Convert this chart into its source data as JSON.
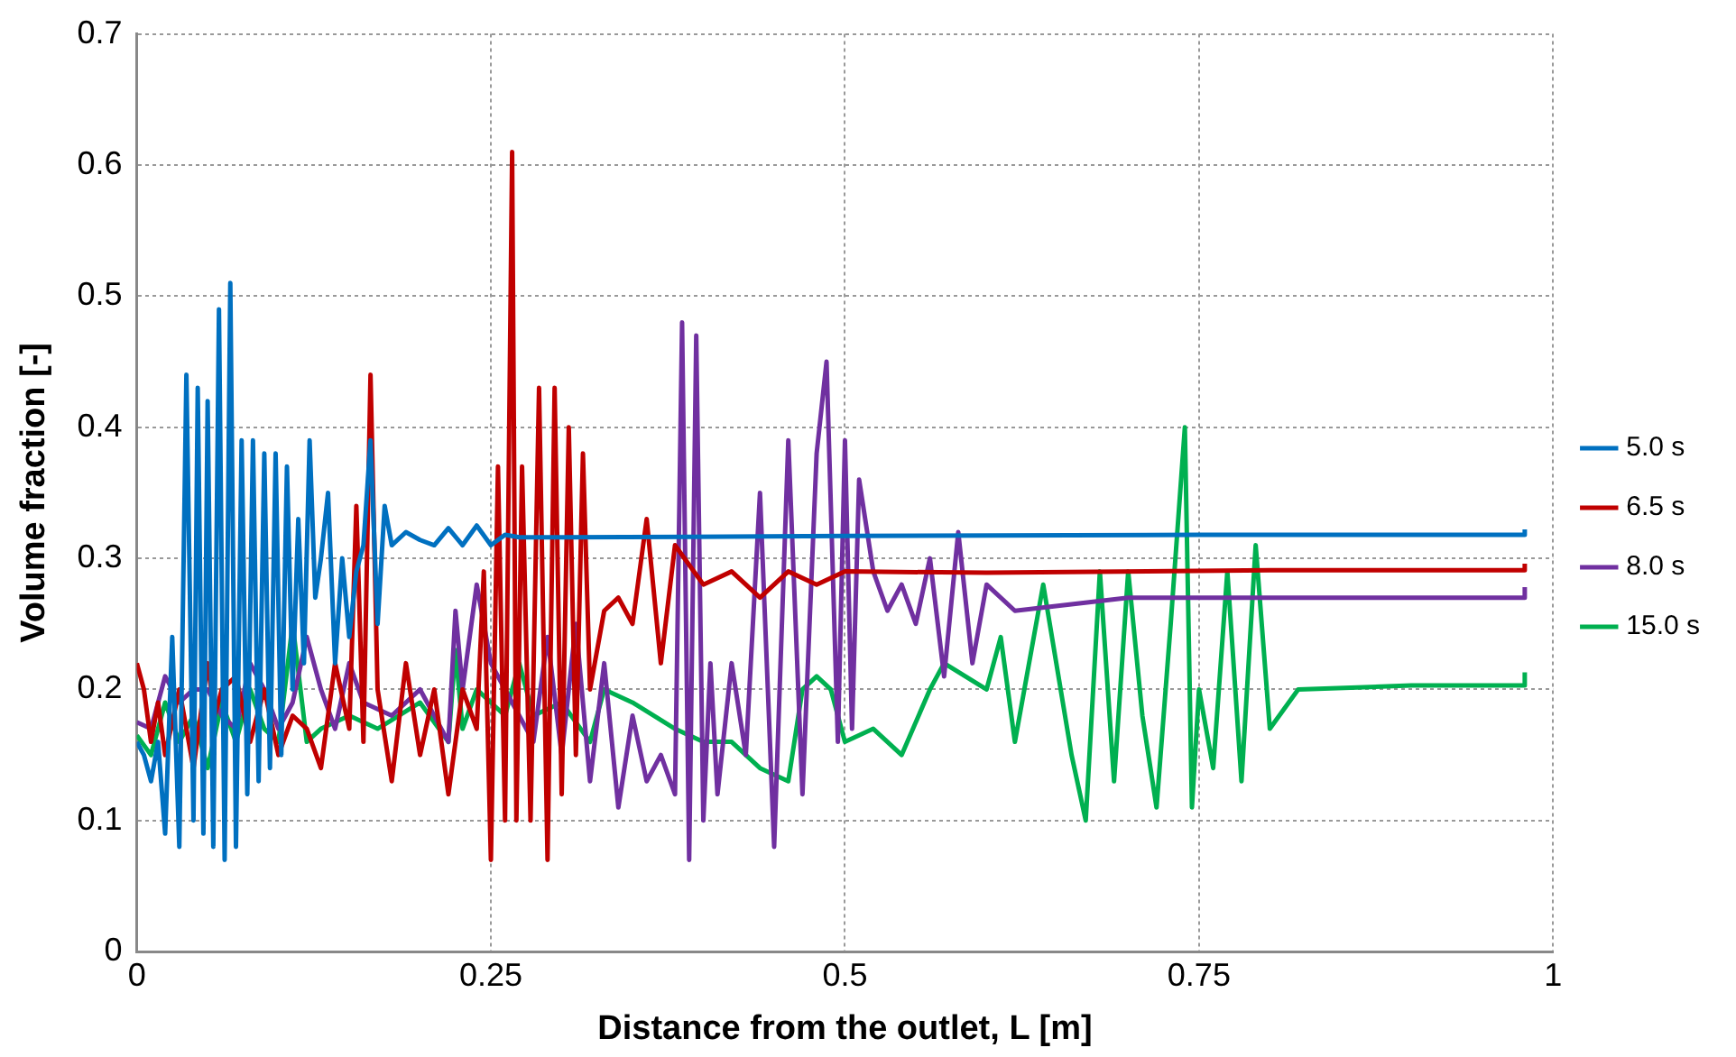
{
  "chart_data": {
    "type": "line",
    "xlabel": "Distance from the outlet, L [m]",
    "ylabel": "Volume fraction [-]",
    "xlim": [
      0,
      1
    ],
    "xticks": [
      0,
      0.25,
      0.5,
      0.75,
      1
    ],
    "ylim": [
      0,
      0.7
    ],
    "yticks": [
      0,
      0.1,
      0.2,
      0.3,
      0.4,
      0.5,
      0.6,
      0.7
    ],
    "grid": true,
    "legend": "right",
    "marker": "none",
    "line_style": "solid",
    "series": [
      {
        "name": "5.0 s",
        "color": "#0070c0",
        "x": [
          0,
          0.005,
          0.01,
          0.015,
          0.02,
          0.025,
          0.03,
          0.035,
          0.04,
          0.043,
          0.047,
          0.05,
          0.054,
          0.058,
          0.062,
          0.066,
          0.07,
          0.074,
          0.078,
          0.082,
          0.086,
          0.09,
          0.094,
          0.098,
          0.102,
          0.106,
          0.11,
          0.114,
          0.118,
          0.122,
          0.126,
          0.13,
          0.135,
          0.14,
          0.145,
          0.15,
          0.155,
          0.16,
          0.165,
          0.17,
          0.175,
          0.18,
          0.19,
          0.2,
          0.21,
          0.22,
          0.23,
          0.24,
          0.25,
          0.26,
          0.27,
          0.3,
          0.5,
          0.75,
          0.98,
          0.98
        ],
        "values": [
          0.16,
          0.15,
          0.13,
          0.16,
          0.09,
          0.24,
          0.08,
          0.44,
          0.1,
          0.43,
          0.09,
          0.42,
          0.08,
          0.49,
          0.07,
          0.51,
          0.08,
          0.39,
          0.12,
          0.39,
          0.13,
          0.38,
          0.14,
          0.38,
          0.15,
          0.37,
          0.2,
          0.33,
          0.22,
          0.39,
          0.27,
          0.3,
          0.35,
          0.22,
          0.3,
          0.24,
          0.29,
          0.31,
          0.39,
          0.25,
          0.34,
          0.31,
          0.32,
          0.314,
          0.31,
          0.323,
          0.31,
          0.325,
          0.31,
          0.318,
          0.316,
          0.316,
          0.317,
          0.318,
          0.318,
          0.322
        ]
      },
      {
        "name": "6.5 s",
        "color": "#c00000",
        "x": [
          0,
          0.005,
          0.01,
          0.015,
          0.02,
          0.03,
          0.04,
          0.05,
          0.055,
          0.06,
          0.07,
          0.08,
          0.09,
          0.1,
          0.11,
          0.12,
          0.13,
          0.14,
          0.15,
          0.155,
          0.16,
          0.165,
          0.17,
          0.18,
          0.19,
          0.2,
          0.21,
          0.22,
          0.23,
          0.24,
          0.245,
          0.25,
          0.255,
          0.26,
          0.265,
          0.268,
          0.272,
          0.278,
          0.284,
          0.29,
          0.295,
          0.3,
          0.305,
          0.31,
          0.315,
          0.32,
          0.33,
          0.34,
          0.35,
          0.36,
          0.37,
          0.38,
          0.4,
          0.42,
          0.44,
          0.46,
          0.48,
          0.5,
          0.6,
          0.8,
          0.98,
          0.98
        ],
        "values": [
          0.22,
          0.2,
          0.16,
          0.19,
          0.15,
          0.2,
          0.14,
          0.22,
          0.18,
          0.2,
          0.21,
          0.16,
          0.2,
          0.15,
          0.18,
          0.17,
          0.14,
          0.22,
          0.17,
          0.34,
          0.16,
          0.44,
          0.2,
          0.13,
          0.22,
          0.15,
          0.2,
          0.12,
          0.2,
          0.17,
          0.29,
          0.07,
          0.37,
          0.1,
          0.61,
          0.1,
          0.37,
          0.1,
          0.43,
          0.07,
          0.43,
          0.12,
          0.4,
          0.15,
          0.38,
          0.2,
          0.26,
          0.27,
          0.25,
          0.33,
          0.22,
          0.31,
          0.28,
          0.29,
          0.27,
          0.29,
          0.28,
          0.29,
          0.289,
          0.291,
          0.291,
          0.296
        ]
      },
      {
        "name": "8.0 s",
        "color": "#7030a0",
        "x": [
          0,
          0.01,
          0.02,
          0.03,
          0.04,
          0.05,
          0.06,
          0.07,
          0.08,
          0.09,
          0.1,
          0.11,
          0.12,
          0.13,
          0.14,
          0.15,
          0.16,
          0.18,
          0.2,
          0.22,
          0.225,
          0.23,
          0.24,
          0.25,
          0.26,
          0.27,
          0.28,
          0.29,
          0.3,
          0.31,
          0.32,
          0.33,
          0.34,
          0.35,
          0.36,
          0.37,
          0.38,
          0.385,
          0.39,
          0.395,
          0.4,
          0.405,
          0.41,
          0.42,
          0.43,
          0.44,
          0.45,
          0.46,
          0.47,
          0.48,
          0.487,
          0.495,
          0.5,
          0.505,
          0.51,
          0.52,
          0.53,
          0.54,
          0.55,
          0.56,
          0.57,
          0.58,
          0.59,
          0.6,
          0.62,
          0.7,
          0.98,
          0.98
        ],
        "values": [
          0.175,
          0.17,
          0.21,
          0.19,
          0.2,
          0.2,
          0.18,
          0.17,
          0.22,
          0.2,
          0.17,
          0.19,
          0.24,
          0.2,
          0.17,
          0.22,
          0.19,
          0.18,
          0.2,
          0.16,
          0.26,
          0.2,
          0.28,
          0.22,
          0.2,
          0.18,
          0.16,
          0.24,
          0.15,
          0.25,
          0.13,
          0.22,
          0.11,
          0.18,
          0.13,
          0.15,
          0.12,
          0.48,
          0.07,
          0.47,
          0.1,
          0.22,
          0.12,
          0.22,
          0.15,
          0.35,
          0.08,
          0.39,
          0.12,
          0.38,
          0.45,
          0.16,
          0.39,
          0.17,
          0.36,
          0.29,
          0.26,
          0.28,
          0.25,
          0.3,
          0.21,
          0.32,
          0.22,
          0.28,
          0.26,
          0.27,
          0.27,
          0.278
        ]
      },
      {
        "name": "15.0 s",
        "color": "#00b050",
        "x": [
          0,
          0.01,
          0.02,
          0.03,
          0.04,
          0.05,
          0.06,
          0.07,
          0.08,
          0.09,
          0.1,
          0.11,
          0.12,
          0.13,
          0.15,
          0.17,
          0.2,
          0.22,
          0.225,
          0.23,
          0.24,
          0.26,
          0.27,
          0.28,
          0.3,
          0.32,
          0.33,
          0.35,
          0.38,
          0.4,
          0.42,
          0.44,
          0.46,
          0.47,
          0.48,
          0.49,
          0.5,
          0.52,
          0.54,
          0.56,
          0.57,
          0.6,
          0.61,
          0.62,
          0.64,
          0.66,
          0.67,
          0.68,
          0.69,
          0.7,
          0.71,
          0.72,
          0.73,
          0.74,
          0.745,
          0.75,
          0.76,
          0.77,
          0.78,
          0.79,
          0.8,
          0.82,
          0.9,
          0.98,
          0.98
        ],
        "values": [
          0.165,
          0.15,
          0.19,
          0.16,
          0.18,
          0.14,
          0.19,
          0.16,
          0.2,
          0.17,
          0.16,
          0.25,
          0.16,
          0.17,
          0.18,
          0.17,
          0.19,
          0.16,
          0.23,
          0.17,
          0.2,
          0.18,
          0.22,
          0.18,
          0.19,
          0.16,
          0.2,
          0.19,
          0.17,
          0.16,
          0.16,
          0.14,
          0.13,
          0.2,
          0.21,
          0.2,
          0.16,
          0.17,
          0.15,
          0.2,
          0.22,
          0.2,
          0.24,
          0.16,
          0.28,
          0.15,
          0.1,
          0.29,
          0.13,
          0.29,
          0.18,
          0.11,
          0.25,
          0.4,
          0.11,
          0.2,
          0.14,
          0.29,
          0.13,
          0.31,
          0.17,
          0.2,
          0.203,
          0.203,
          0.213
        ]
      }
    ]
  }
}
